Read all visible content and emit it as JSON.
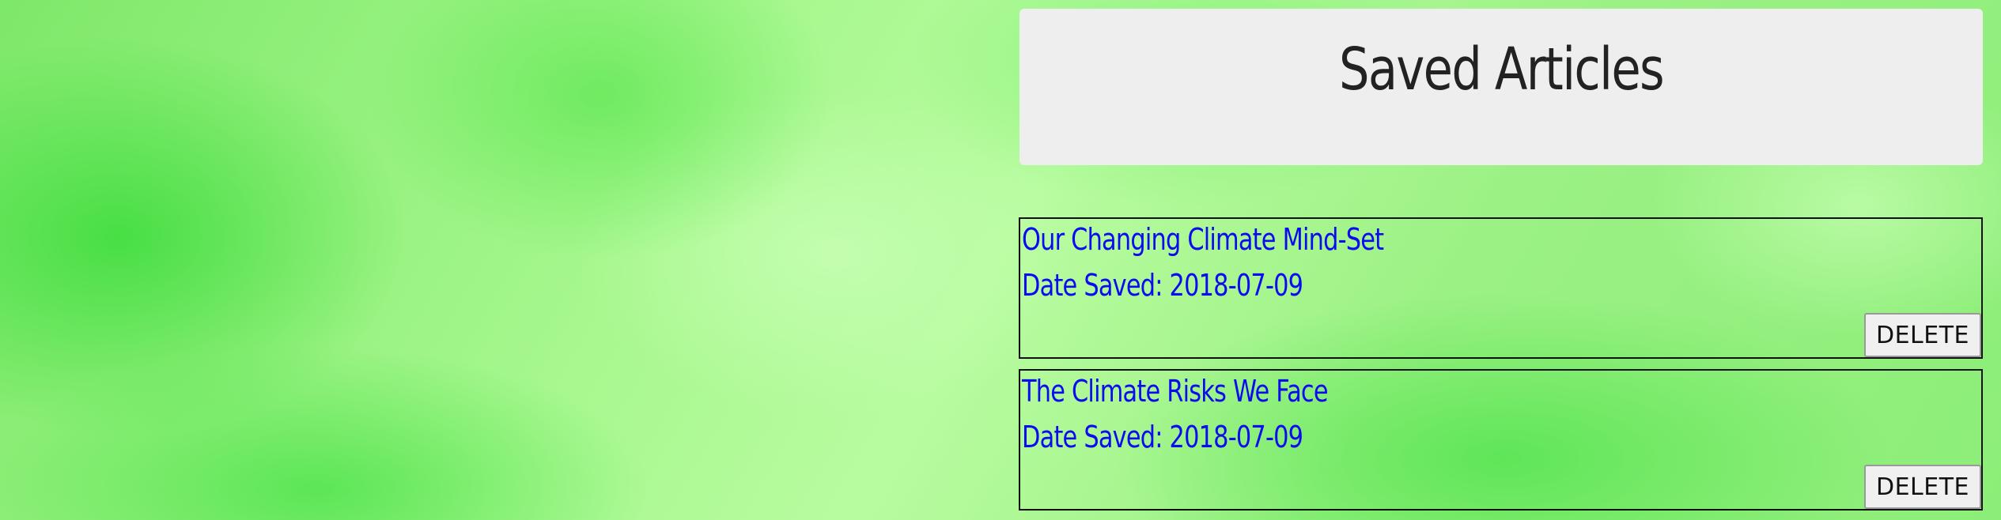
{
  "header": {
    "title": "Saved Articles"
  },
  "articles": [
    {
      "title": "Our Changing Climate Mind-Set",
      "date_text": "Date Saved: 2018-07-09",
      "delete_label": "DELETE"
    },
    {
      "title": "The Climate Risks We Face",
      "date_text": "Date Saved: 2018-07-09",
      "delete_label": "DELETE"
    }
  ],
  "colors": {
    "link": "#0b0bf0",
    "panel": "#eeeeee",
    "background": "#a8f88f"
  }
}
